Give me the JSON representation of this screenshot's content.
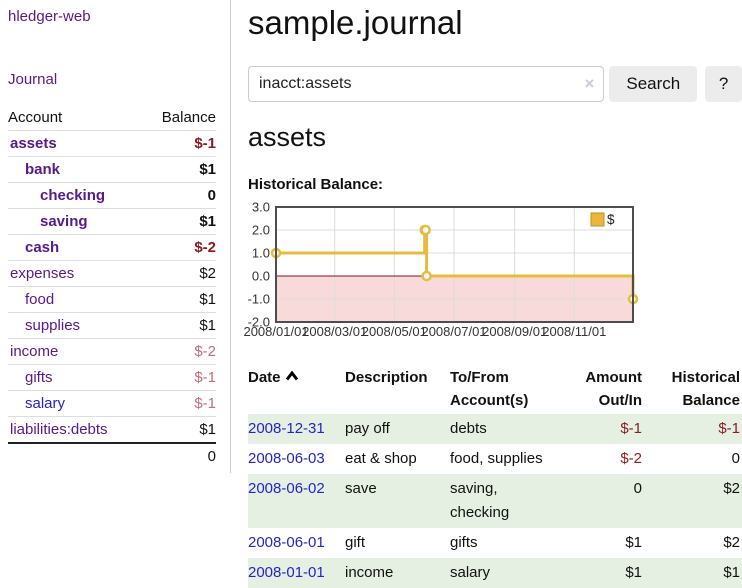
{
  "colors": {
    "link_purple": "#551a8b",
    "link_blue": "#2323cc",
    "negative_strong": "#8b1a1a",
    "negative_soft": "#c16d7a",
    "row_green": "#e5f0e2",
    "chart_line": "#e6bc3e",
    "chart_marker_fill": "#ffffff",
    "chart_negative_fill": "#f9dada",
    "chart_zero_line": "#8b0f0f",
    "chart_border": "#4d4d4d",
    "chart_grid": "#dcdcdc",
    "legend_swatch_fill": "#eab63b",
    "legend_swatch_border": "#b9941f"
  },
  "sidebar": {
    "brand": "hledger-web",
    "nav_journal": "Journal",
    "accounts_header_account": "Account",
    "accounts_header_balance": "Balance",
    "accounts": [
      {
        "name": "assets",
        "balance": "$-1",
        "indent": 0,
        "bold": true,
        "balance_tone": "negative-strong",
        "link_tone": "purple"
      },
      {
        "name": "bank",
        "balance": "$1",
        "indent": 1,
        "bold": true,
        "balance_tone": "normal",
        "link_tone": "purple"
      },
      {
        "name": "checking",
        "balance": "0",
        "indent": 2,
        "bold": true,
        "balance_tone": "normal",
        "link_tone": "purple"
      },
      {
        "name": "saving",
        "balance": "$1",
        "indent": 2,
        "bold": true,
        "balance_tone": "normal",
        "link_tone": "purple"
      },
      {
        "name": "cash",
        "balance": "$-2",
        "indent": 1,
        "bold": true,
        "balance_tone": "negative-strong",
        "link_tone": "purple"
      },
      {
        "name": "expenses",
        "balance": "$2",
        "indent": 0,
        "bold": false,
        "balance_tone": "normal",
        "link_tone": "purple"
      },
      {
        "name": "food",
        "balance": "$1",
        "indent": 1,
        "bold": false,
        "balance_tone": "normal",
        "link_tone": "purple"
      },
      {
        "name": "supplies",
        "balance": "$1",
        "indent": 1,
        "bold": false,
        "balance_tone": "normal",
        "link_tone": "purple"
      },
      {
        "name": "income",
        "balance": "$-2",
        "indent": 0,
        "bold": false,
        "balance_tone": "negative-soft",
        "link_tone": "purple"
      },
      {
        "name": "gifts",
        "balance": "$-1",
        "indent": 1,
        "bold": false,
        "balance_tone": "negative-soft",
        "link_tone": "purple"
      },
      {
        "name": "salary",
        "balance": "$-1",
        "indent": 1,
        "bold": false,
        "balance_tone": "negative-soft",
        "link_tone": "blue"
      },
      {
        "name": "liabilities:debts",
        "balance": "$1",
        "indent": 0,
        "bold": false,
        "balance_tone": "normal",
        "link_tone": "purple"
      }
    ],
    "total": "0"
  },
  "header": {
    "title": "sample.journal"
  },
  "search": {
    "value": "inacct:assets",
    "clear_icon": "×",
    "button_label": "Search",
    "help_label": "?"
  },
  "account_page": {
    "title": "assets",
    "chart_label": "Historical Balance:"
  },
  "chart_data": {
    "type": "line",
    "step": "after",
    "title": "Historical Balance:",
    "legend": {
      "label": "$",
      "position": "top-right"
    },
    "x_range": [
      "2008-01-01",
      "2008-12-31"
    ],
    "ylim": [
      -2,
      3
    ],
    "y_ticks": [
      3,
      2,
      1,
      0,
      -1,
      -2
    ],
    "x_ticks": [
      "2008/01/01",
      "2008/03/01",
      "2008/05/01",
      "2008/07/01",
      "2008/09/01",
      "2008/11/01"
    ],
    "series": [
      {
        "name": "$",
        "points": [
          {
            "date": "2008-01-01",
            "value": 1
          },
          {
            "date": "2008-06-01",
            "value": 2
          },
          {
            "date": "2008-06-02",
            "value": 2
          },
          {
            "date": "2008-06-03",
            "value": 0
          },
          {
            "date": "2008-12-31",
            "value": -1
          }
        ]
      }
    ],
    "grid": true,
    "negative_region_shaded": true
  },
  "register": {
    "headers": [
      {
        "lines": [
          "Date"
        ],
        "sort_icon": "chevron-up",
        "align": "left"
      },
      {
        "lines": [
          "Description"
        ],
        "align": "left"
      },
      {
        "lines": [
          "To/From",
          "Account(s)"
        ],
        "align": "left"
      },
      {
        "lines": [
          "Amount",
          "Out/In"
        ],
        "align": "right"
      },
      {
        "lines": [
          "Historical",
          "Balance"
        ],
        "align": "right"
      }
    ],
    "rows": [
      {
        "date": "2008-12-31",
        "description": "pay off",
        "accounts": "debts",
        "amount": "$-1",
        "amount_tone": "negative",
        "balance": "$-1",
        "balance_tone": "negative",
        "shaded": true
      },
      {
        "date": "2008-06-03",
        "description": "eat & shop",
        "accounts": "food, supplies",
        "amount": "$-2",
        "amount_tone": "negative",
        "balance": "0",
        "balance_tone": "normal",
        "shaded": false
      },
      {
        "date": "2008-06-02",
        "description": "save",
        "accounts": "saving, checking",
        "amount": "0",
        "amount_tone": "normal",
        "balance": "$2",
        "balance_tone": "normal",
        "shaded": true
      },
      {
        "date": "2008-06-01",
        "description": "gift",
        "accounts": "gifts",
        "amount": "$1",
        "amount_tone": "normal",
        "balance": "$2",
        "balance_tone": "normal",
        "shaded": false
      },
      {
        "date": "2008-01-01",
        "description": "income",
        "accounts": "salary",
        "amount": "$1",
        "amount_tone": "normal",
        "balance": "$1",
        "balance_tone": "normal",
        "shaded": true
      }
    ]
  }
}
